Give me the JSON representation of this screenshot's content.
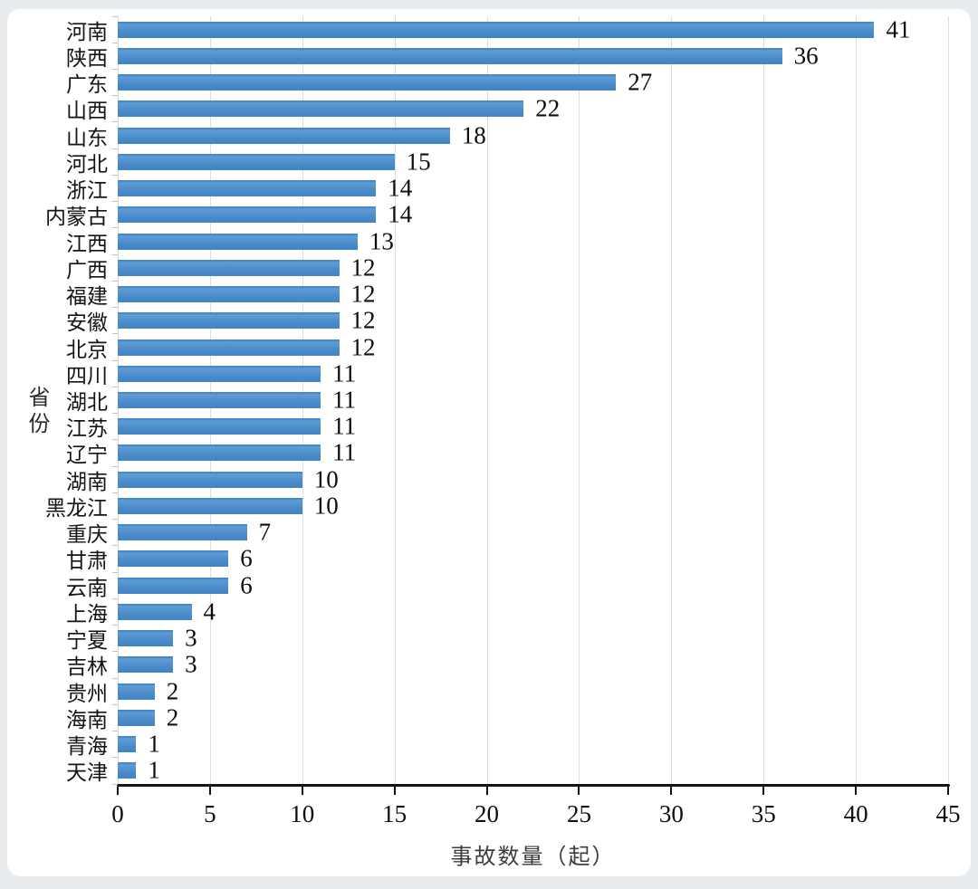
{
  "page": {
    "background_color": "#e9ecee",
    "card_color": "#ffffff"
  },
  "chart_data": {
    "type": "bar",
    "orientation": "horizontal",
    "title": "",
    "xlabel": "事故数量（起）",
    "ylabel": "省份",
    "xlim": [
      0,
      45
    ],
    "xticks": [
      0,
      5,
      10,
      15,
      20,
      25,
      30,
      35,
      40,
      45
    ],
    "grid": true,
    "legend": "none",
    "bar_color": "#4e8dca",
    "gridline_color": "#dadedf",
    "axis_color": "#141414",
    "categories": [
      "河南",
      "陕西",
      "广东",
      "山西",
      "山东",
      "河北",
      "浙江",
      "内蒙古",
      "江西",
      "广西",
      "福建",
      "安徽",
      "北京",
      "四川",
      "湖北",
      "江苏",
      "辽宁",
      "湖南",
      "黑龙江",
      "重庆",
      "甘肃",
      "云南",
      "上海",
      "宁夏",
      "吉林",
      "贵州",
      "海南",
      "青海",
      "天津"
    ],
    "values": [
      41,
      36,
      27,
      22,
      18,
      15,
      14,
      14,
      13,
      12,
      12,
      12,
      12,
      11,
      11,
      11,
      11,
      10,
      10,
      7,
      6,
      6,
      4,
      3,
      3,
      2,
      2,
      1,
      1
    ],
    "data_labels_shown": true
  }
}
